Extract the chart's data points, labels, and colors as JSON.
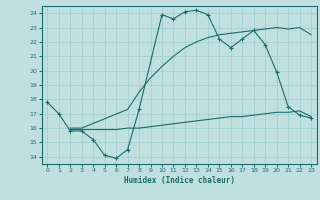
{
  "xlabel": "Humidex (Indice chaleur)",
  "xlim": [
    -0.5,
    23.5
  ],
  "ylim": [
    13.5,
    24.5
  ],
  "xticks": [
    0,
    1,
    2,
    3,
    4,
    5,
    6,
    7,
    8,
    9,
    10,
    11,
    12,
    13,
    14,
    15,
    16,
    17,
    18,
    19,
    20,
    21,
    22,
    23
  ],
  "yticks": [
    14,
    15,
    16,
    17,
    18,
    19,
    20,
    21,
    22,
    23,
    24
  ],
  "bg_color": "#c0e0e0",
  "line_color": "#1a6b6b",
  "gridcolor": "#a0cccc",
  "line1_x": [
    0,
    1,
    2,
    3,
    4,
    5,
    6,
    7,
    8,
    10,
    11,
    12,
    13,
    14,
    15,
    16,
    17,
    18,
    19,
    20,
    21,
    22,
    23
  ],
  "line1_y": [
    17.8,
    17.0,
    15.8,
    15.8,
    15.2,
    14.1,
    13.9,
    14.5,
    17.3,
    23.9,
    23.6,
    24.1,
    24.2,
    23.9,
    22.2,
    21.6,
    22.2,
    22.8,
    21.8,
    19.9,
    17.5,
    16.9,
    16.7
  ],
  "line2_x": [
    2,
    3,
    4,
    5,
    6,
    7,
    8,
    9,
    10,
    11,
    12,
    13,
    14,
    15,
    16,
    17,
    18,
    19,
    20,
    21,
    22,
    23
  ],
  "line2_y": [
    15.9,
    15.9,
    15.9,
    15.9,
    15.9,
    16.0,
    16.0,
    16.1,
    16.2,
    16.3,
    16.4,
    16.5,
    16.6,
    16.7,
    16.8,
    16.8,
    16.9,
    17.0,
    17.1,
    17.1,
    17.2,
    16.8
  ],
  "line3_x": [
    2,
    3,
    7,
    8,
    9,
    10,
    11,
    12,
    13,
    14,
    15,
    16,
    17,
    18,
    19,
    20,
    21,
    22,
    23
  ],
  "line3_y": [
    16.0,
    16.0,
    17.3,
    18.5,
    19.5,
    20.3,
    21.0,
    21.6,
    22.0,
    22.3,
    22.5,
    22.6,
    22.7,
    22.8,
    22.9,
    23.0,
    22.9,
    23.0,
    22.5
  ]
}
